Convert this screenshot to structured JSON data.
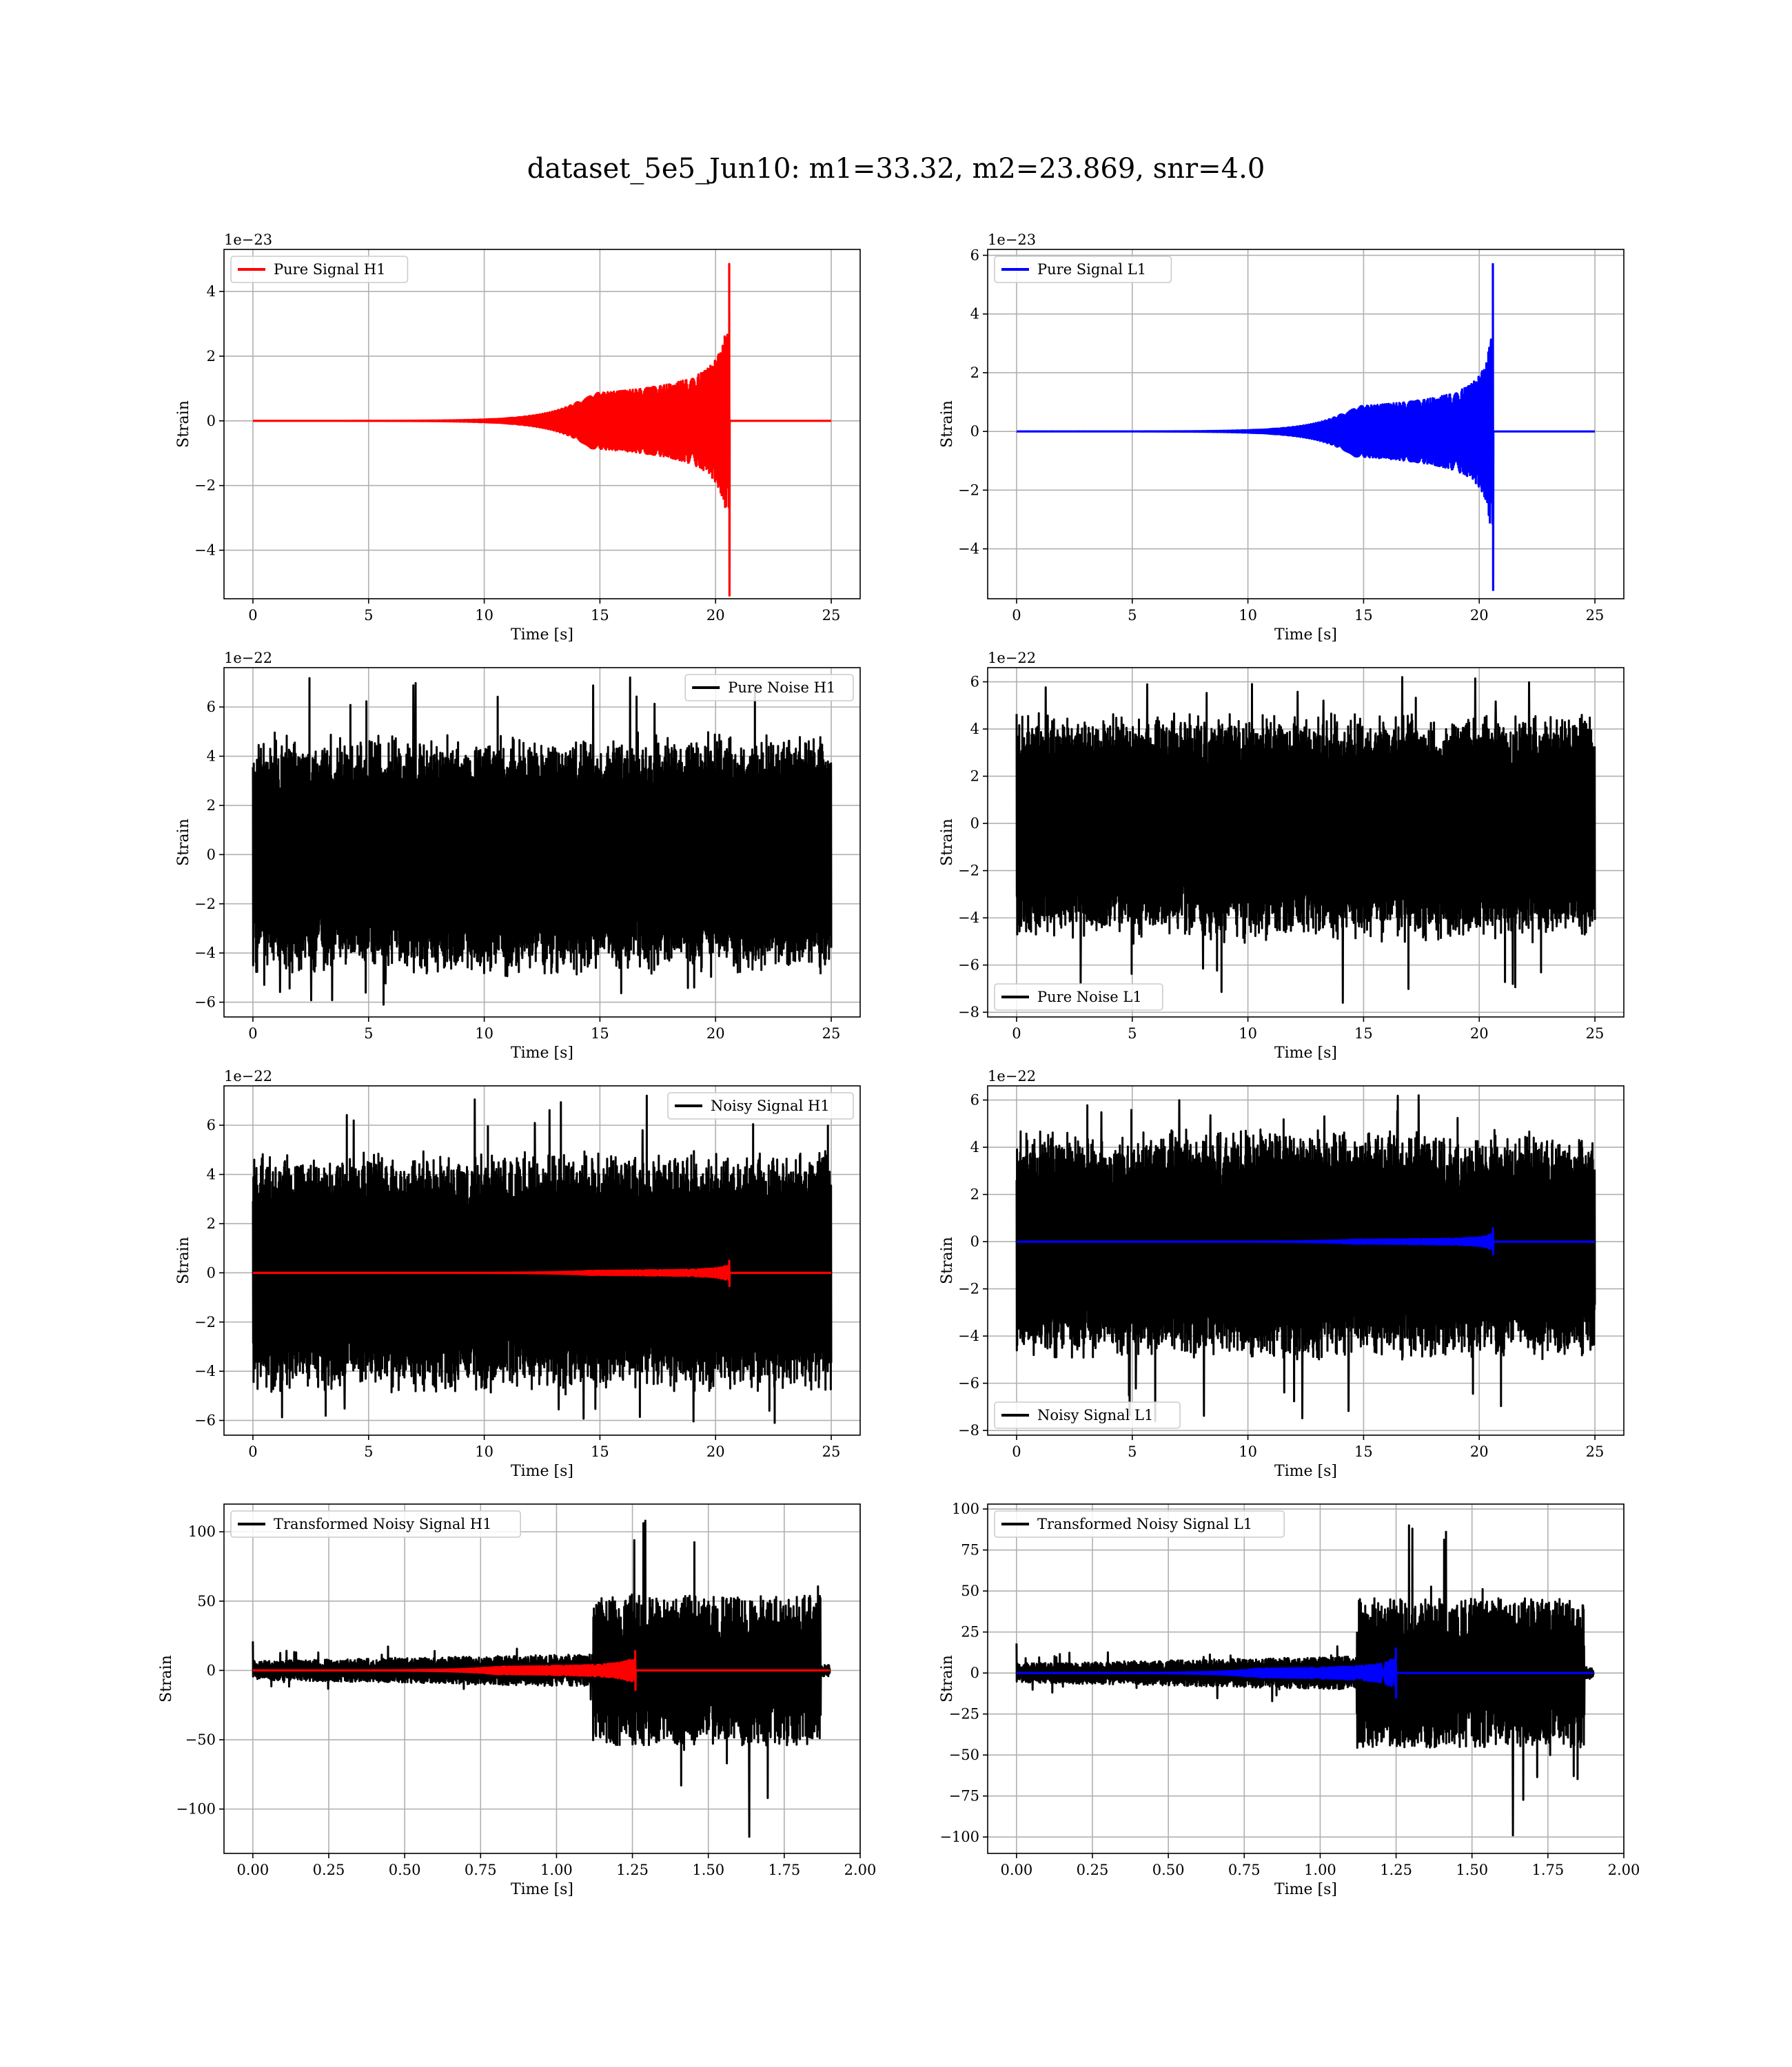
{
  "figure": {
    "title": "dataset_5e5_Jun10: m1=33.32, m2=23.869, snr=4.0"
  },
  "chart_data": [
    {
      "type": "line",
      "id": "pure-signal-h1",
      "xlabel": "Time [s]",
      "ylabel": "Strain",
      "offset_text": "1e−23",
      "xlim": [
        -1.25,
        26.25
      ],
      "ylim": [
        -5.5,
        5.3
      ],
      "xticks": [
        0,
        5,
        10,
        15,
        20,
        25
      ],
      "xtick_labels": [
        "0",
        "5",
        "10",
        "15",
        "20",
        "25"
      ],
      "yticks": [
        -4,
        -2,
        0,
        2,
        4
      ],
      "ytick_labels": [
        "−4",
        "−2",
        "0",
        "2",
        "4"
      ],
      "grid": true,
      "legend": {
        "loc": "upper left",
        "entries": [
          {
            "label": "Pure Signal H1",
            "color": "#ff0000"
          }
        ]
      },
      "series": [
        {
          "name": "Pure Signal H1",
          "kind": "chirp",
          "color": "#ff0000",
          "x_range": [
            0,
            25
          ],
          "t_merge": 20.6,
          "baseline": 0,
          "peak_pos": 4.85,
          "peak_neg": -5.4,
          "amp_late": 1.9
        }
      ]
    },
    {
      "type": "line",
      "id": "pure-signal-l1",
      "xlabel": "Time [s]",
      "ylabel": "Strain",
      "offset_text": "1e−23",
      "xlim": [
        -1.25,
        26.25
      ],
      "ylim": [
        -5.7,
        6.2
      ],
      "xticks": [
        0,
        5,
        10,
        15,
        20,
        25
      ],
      "xtick_labels": [
        "0",
        "5",
        "10",
        "15",
        "20",
        "25"
      ],
      "yticks": [
        -4,
        -2,
        0,
        2,
        4,
        6
      ],
      "ytick_labels": [
        "−4",
        "−2",
        "0",
        "2",
        "4",
        "6"
      ],
      "grid": true,
      "legend": {
        "loc": "upper left",
        "entries": [
          {
            "label": "Pure Signal L1",
            "color": "#0000ff"
          }
        ]
      },
      "series": [
        {
          "name": "Pure Signal L1",
          "kind": "chirp",
          "color": "#0000ff",
          "x_range": [
            0,
            25
          ],
          "t_merge": 20.6,
          "baseline": 0,
          "peak_pos": 5.7,
          "peak_neg": -5.4,
          "amp_late": 1.9
        }
      ]
    },
    {
      "type": "line",
      "id": "pure-noise-h1",
      "xlabel": "Time [s]",
      "ylabel": "Strain",
      "offset_text": "1e−22",
      "xlim": [
        -1.25,
        26.25
      ],
      "ylim": [
        -6.6,
        7.6
      ],
      "xticks": [
        0,
        5,
        10,
        15,
        20,
        25
      ],
      "xtick_labels": [
        "0",
        "5",
        "10",
        "15",
        "20",
        "25"
      ],
      "yticks": [
        -6,
        -4,
        -2,
        0,
        2,
        4,
        6
      ],
      "ytick_labels": [
        "−6",
        "−4",
        "−2",
        "0",
        "2",
        "4",
        "6"
      ],
      "grid": true,
      "legend": {
        "loc": "upper right",
        "entries": [
          {
            "label": "Pure Noise H1",
            "color": "#000000"
          }
        ]
      },
      "series": [
        {
          "name": "Pure Noise H1",
          "kind": "noise",
          "color": "#000000",
          "x_range": [
            0,
            25
          ],
          "core_lo": -3.6,
          "core_hi": 3.6,
          "max": 7.2,
          "min": -6.1
        }
      ]
    },
    {
      "type": "line",
      "id": "pure-noise-l1",
      "xlabel": "Time [s]",
      "ylabel": "Strain",
      "offset_text": "1e−22",
      "xlim": [
        -1.25,
        26.25
      ],
      "ylim": [
        -8.2,
        6.6
      ],
      "xticks": [
        0,
        5,
        10,
        15,
        20,
        25
      ],
      "xtick_labels": [
        "0",
        "5",
        "10",
        "15",
        "20",
        "25"
      ],
      "yticks": [
        -8,
        -6,
        -4,
        -2,
        0,
        2,
        4,
        6
      ],
      "ytick_labels": [
        "−8",
        "−6",
        "−4",
        "−2",
        "0",
        "2",
        "4",
        "6"
      ],
      "grid": true,
      "legend": {
        "loc": "lower left",
        "entries": [
          {
            "label": "Pure Noise L1",
            "color": "#000000"
          }
        ]
      },
      "series": [
        {
          "name": "Pure Noise L1",
          "kind": "noise",
          "color": "#000000",
          "x_range": [
            0,
            25
          ],
          "core_lo": -3.7,
          "core_hi": 3.4,
          "max": 6.2,
          "min": -7.6
        }
      ]
    },
    {
      "type": "line",
      "id": "noisy-signal-h1",
      "xlabel": "Time [s]",
      "ylabel": "Strain",
      "offset_text": "1e−22",
      "xlim": [
        -1.25,
        26.25
      ],
      "ylim": [
        -6.6,
        7.6
      ],
      "xticks": [
        0,
        5,
        10,
        15,
        20,
        25
      ],
      "xtick_labels": [
        "0",
        "5",
        "10",
        "15",
        "20",
        "25"
      ],
      "yticks": [
        -6,
        -4,
        -2,
        0,
        2,
        4,
        6
      ],
      "ytick_labels": [
        "−6",
        "−4",
        "−2",
        "0",
        "2",
        "4",
        "6"
      ],
      "grid": true,
      "legend": {
        "loc": "upper right",
        "entries": [
          {
            "label": "Noisy Signal H1",
            "color": "#000000"
          }
        ]
      },
      "series": [
        {
          "name": "Noisy Signal H1",
          "kind": "noise",
          "color": "#000000",
          "x_range": [
            0,
            25
          ],
          "core_lo": -3.6,
          "core_hi": 3.6,
          "max": 7.2,
          "min": -6.1
        },
        {
          "kind": "chirp",
          "color": "#ff0000",
          "x_range": [
            0,
            25
          ],
          "t_merge": 20.6,
          "baseline": 0,
          "peak_pos": 0.49,
          "peak_neg": -0.54,
          "amp_late": 0.19
        }
      ]
    },
    {
      "type": "line",
      "id": "noisy-signal-l1",
      "xlabel": "Time [s]",
      "ylabel": "Strain",
      "offset_text": "1e−22",
      "xlim": [
        -1.25,
        26.25
      ],
      "ylim": [
        -8.2,
        6.6
      ],
      "xticks": [
        0,
        5,
        10,
        15,
        20,
        25
      ],
      "xtick_labels": [
        "0",
        "5",
        "10",
        "15",
        "20",
        "25"
      ],
      "yticks": [
        -8,
        -6,
        -4,
        -2,
        0,
        2,
        4,
        6
      ],
      "ytick_labels": [
        "−8",
        "−6",
        "−4",
        "−2",
        "0",
        "2",
        "4",
        "6"
      ],
      "grid": true,
      "legend": {
        "loc": "lower left",
        "entries": [
          {
            "label": "Noisy Signal L1",
            "color": "#000000"
          }
        ]
      },
      "series": [
        {
          "name": "Noisy Signal L1",
          "kind": "noise",
          "color": "#000000",
          "x_range": [
            0,
            25
          ],
          "core_lo": -3.7,
          "core_hi": 3.4,
          "max": 6.2,
          "min": -7.6
        },
        {
          "kind": "chirp",
          "color": "#0000ff",
          "x_range": [
            0,
            25
          ],
          "t_merge": 20.6,
          "baseline": 0,
          "peak_pos": 0.57,
          "peak_neg": -0.54,
          "amp_late": 0.19
        }
      ]
    },
    {
      "type": "line",
      "id": "transformed-noisy-signal-h1",
      "xlabel": "Time [s]",
      "ylabel": "Strain",
      "offset_text": "",
      "xlim": [
        -0.095,
        2.0
      ],
      "ylim": [
        -132,
        120
      ],
      "xticks": [
        0,
        0.25,
        0.5,
        0.75,
        1.0,
        1.25,
        1.5,
        1.75,
        2.0
      ],
      "xtick_labels": [
        "0.00",
        "0.25",
        "0.50",
        "0.75",
        "1.00",
        "1.25",
        "1.50",
        "1.75",
        "2.00"
      ],
      "yticks": [
        -100,
        -50,
        0,
        50,
        100
      ],
      "ytick_labels": [
        "−100",
        "−50",
        "0",
        "50",
        "100"
      ],
      "grid": true,
      "legend": {
        "loc": "upper left",
        "entries": [
          {
            "label": "Transformed Noisy Signal H1",
            "color": "#000000"
          }
        ]
      },
      "series": [
        {
          "name": "Transformed Noisy Signal H1",
          "kind": "whitened",
          "color": "#000000",
          "x_range": [
            0,
            1.9
          ],
          "t_step": 1.12,
          "quiet_amp": 7,
          "loud_amp": 45,
          "max": 108,
          "min": -120
        },
        {
          "kind": "chirp",
          "color": "#ff0000",
          "x_range": [
            0,
            1.9
          ],
          "t_merge": 1.26,
          "baseline": 0,
          "peak_pos": 14,
          "peak_neg": -14,
          "amp_late": 6
        }
      ]
    },
    {
      "type": "line",
      "id": "transformed-noisy-signal-l1",
      "xlabel": "Time [s]",
      "ylabel": "Strain",
      "offset_text": "",
      "xlim": [
        -0.095,
        2.0
      ],
      "ylim": [
        -110,
        103
      ],
      "xticks": [
        0,
        0.25,
        0.5,
        0.75,
        1.0,
        1.25,
        1.5,
        1.75,
        2.0
      ],
      "xtick_labels": [
        "0.00",
        "0.25",
        "0.50",
        "0.75",
        "1.00",
        "1.25",
        "1.50",
        "1.75",
        "2.00"
      ],
      "yticks": [
        -100,
        -75,
        -50,
        -25,
        0,
        25,
        50,
        75,
        100
      ],
      "ytick_labels": [
        "−100",
        "−75",
        "−50",
        "−25",
        "0",
        "25",
        "50",
        "75",
        "100"
      ],
      "grid": true,
      "legend": {
        "loc": "upper left",
        "entries": [
          {
            "label": "Transformed Noisy Signal L1",
            "color": "#000000"
          }
        ]
      },
      "series": [
        {
          "name": "Transformed Noisy Signal L1",
          "kind": "whitened",
          "color": "#000000",
          "x_range": [
            0,
            1.9
          ],
          "t_step": 1.12,
          "quiet_amp": 6,
          "loud_amp": 38,
          "max": 90,
          "min": -99
        },
        {
          "kind": "chirp",
          "color": "#0000ff",
          "x_range": [
            0,
            1.9
          ],
          "t_merge": 1.25,
          "baseline": 0,
          "peak_pos": 15,
          "peak_neg": -15,
          "amp_late": 6
        }
      ]
    }
  ]
}
